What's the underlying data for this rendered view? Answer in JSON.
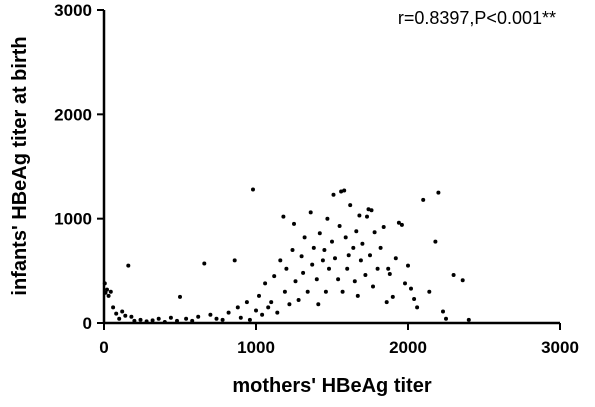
{
  "chart_data": {
    "type": "scatter",
    "title": "",
    "xlabel": "mothers' HBeAg titer",
    "ylabel": "infants' HBeAg titer at birth",
    "xlim": [
      0,
      3000
    ],
    "ylim": [
      0,
      3000
    ],
    "x_ticks": [
      "0",
      "1000",
      "2000",
      "3000"
    ],
    "y_ticks": [
      "0",
      "1000",
      "2000",
      "3000"
    ],
    "annotation": "r=0.8397,P<0.001**",
    "grid": false,
    "legend": "none",
    "point_color": "#000000",
    "series": [
      {
        "points": [
          [
            5,
            380
          ],
          [
            10,
            290
          ],
          [
            20,
            320
          ],
          [
            30,
            260
          ],
          [
            45,
            300
          ],
          [
            60,
            150
          ],
          [
            80,
            90
          ],
          [
            100,
            40
          ],
          [
            120,
            110
          ],
          [
            140,
            70
          ],
          [
            160,
            550
          ],
          [
            180,
            60
          ],
          [
            200,
            20
          ],
          [
            240,
            30
          ],
          [
            280,
            15
          ],
          [
            320,
            25
          ],
          [
            360,
            40
          ],
          [
            400,
            10
          ],
          [
            440,
            50
          ],
          [
            480,
            20
          ],
          [
            500,
            250
          ],
          [
            540,
            40
          ],
          [
            580,
            20
          ],
          [
            620,
            60
          ],
          [
            660,
            570
          ],
          [
            700,
            80
          ],
          [
            740,
            40
          ],
          [
            780,
            30
          ],
          [
            820,
            100
          ],
          [
            860,
            600
          ],
          [
            880,
            150
          ],
          [
            900,
            50
          ],
          [
            940,
            200
          ],
          [
            960,
            30
          ],
          [
            980,
            1280
          ],
          [
            1000,
            120
          ],
          [
            1020,
            260
          ],
          [
            1040,
            80
          ],
          [
            1060,
            380
          ],
          [
            1080,
            150
          ],
          [
            1100,
            200
          ],
          [
            1120,
            450
          ],
          [
            1140,
            100
          ],
          [
            1160,
            600
          ],
          [
            1180,
            1020
          ],
          [
            1190,
            300
          ],
          [
            1200,
            520
          ],
          [
            1220,
            180
          ],
          [
            1240,
            700
          ],
          [
            1250,
            950
          ],
          [
            1260,
            400
          ],
          [
            1280,
            220
          ],
          [
            1300,
            640
          ],
          [
            1310,
            480
          ],
          [
            1320,
            820
          ],
          [
            1340,
            300
          ],
          [
            1360,
            1060
          ],
          [
            1370,
            560
          ],
          [
            1380,
            720
          ],
          [
            1400,
            420
          ],
          [
            1410,
            180
          ],
          [
            1420,
            860
          ],
          [
            1440,
            600
          ],
          [
            1450,
            700
          ],
          [
            1460,
            300
          ],
          [
            1470,
            1000
          ],
          [
            1480,
            520
          ],
          [
            1500,
            780
          ],
          [
            1510,
            1230
          ],
          [
            1520,
            620
          ],
          [
            1540,
            420
          ],
          [
            1550,
            930
          ],
          [
            1560,
            1260
          ],
          [
            1570,
            300
          ],
          [
            1580,
            1270
          ],
          [
            1590,
            820
          ],
          [
            1600,
            520
          ],
          [
            1610,
            650
          ],
          [
            1620,
            1130
          ],
          [
            1640,
            720
          ],
          [
            1650,
            400
          ],
          [
            1660,
            880
          ],
          [
            1670,
            260
          ],
          [
            1680,
            1030
          ],
          [
            1690,
            600
          ],
          [
            1700,
            760
          ],
          [
            1720,
            460
          ],
          [
            1730,
            1020
          ],
          [
            1740,
            1090
          ],
          [
            1750,
            650
          ],
          [
            1760,
            1080
          ],
          [
            1770,
            350
          ],
          [
            1780,
            870
          ],
          [
            1800,
            520
          ],
          [
            1820,
            720
          ],
          [
            1840,
            920
          ],
          [
            1860,
            200
          ],
          [
            1870,
            520
          ],
          [
            1880,
            470
          ],
          [
            1900,
            250
          ],
          [
            1920,
            620
          ],
          [
            1940,
            960
          ],
          [
            1960,
            940
          ],
          [
            1980,
            380
          ],
          [
            2000,
            550
          ],
          [
            2020,
            330
          ],
          [
            2040,
            230
          ],
          [
            2060,
            150
          ],
          [
            2100,
            1180
          ],
          [
            2140,
            300
          ],
          [
            2180,
            780
          ],
          [
            2200,
            1250
          ],
          [
            2230,
            110
          ],
          [
            2250,
            40
          ],
          [
            2300,
            460
          ],
          [
            2360,
            410
          ],
          [
            2400,
            30
          ]
        ]
      }
    ]
  }
}
